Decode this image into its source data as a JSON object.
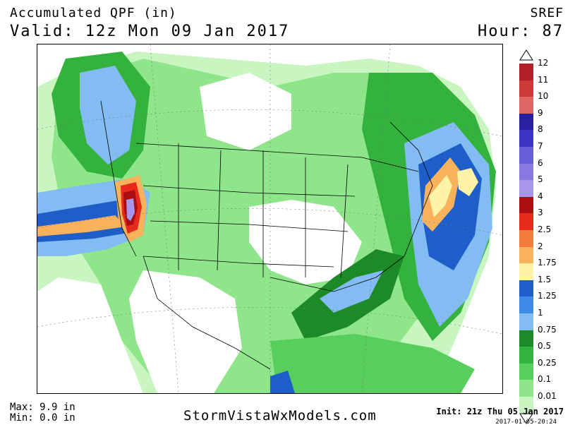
{
  "header": {
    "title": "Accumulated QPF (in)",
    "valid": "Valid: 12z Mon 09 Jan 2017",
    "model": "SREF",
    "hour": "Hour: 87"
  },
  "footer": {
    "max": "Max: 9.9 in",
    "min": "Min: 0.0 in",
    "credit": "StormVistaWxModels.com",
    "init": "Init: 21z Thu 05 Jan 2017",
    "timestamp": "2017-01-05-20:24"
  },
  "legend": {
    "items": [
      {
        "label": "12",
        "color": "#b2202a"
      },
      {
        "label": "11",
        "color": "#cc3a3a"
      },
      {
        "label": "10",
        "color": "#e06666"
      },
      {
        "label": "9",
        "color": "#2a1fa0"
      },
      {
        "label": "8",
        "color": "#3a34c0"
      },
      {
        "label": "7",
        "color": "#6a5fd8"
      },
      {
        "label": "6",
        "color": "#8878e0"
      },
      {
        "label": "5",
        "color": "#a896ec"
      },
      {
        "label": "4",
        "color": "#a80e12"
      },
      {
        "label": "3",
        "color": "#e82a1c"
      },
      {
        "label": "2.5",
        "color": "#f47a3c"
      },
      {
        "label": "2",
        "color": "#f9b25c"
      },
      {
        "label": "1.75",
        "color": "#fff3a8"
      },
      {
        "label": "1.5",
        "color": "#1e5ec9"
      },
      {
        "label": "1.25",
        "color": "#3f8ae6"
      },
      {
        "label": "1",
        "color": "#82bcf2"
      },
      {
        "label": "0.75",
        "color": "#1d8a28"
      },
      {
        "label": "0.5",
        "color": "#34b23e"
      },
      {
        "label": "0.25",
        "color": "#58cf5c"
      },
      {
        "label": "0.1",
        "color": "#8fe68a"
      },
      {
        "label": "0.01",
        "color": "#c8f5c0"
      }
    ]
  }
}
